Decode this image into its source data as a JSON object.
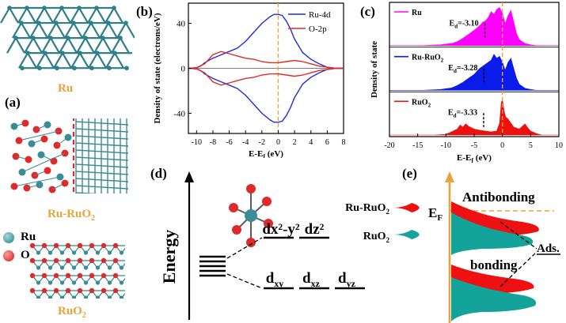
{
  "panel_a": {
    "label": "(a)",
    "ru_label": "Ru",
    "ru_ruo2_label": "Ru-RuO",
    "ru_ruo2_sub": "2",
    "ruo2_label": "RuO",
    "ruo2_sub": "2",
    "legend": [
      {
        "text": "Ru",
        "color": "#3a8c96"
      },
      {
        "text": "O",
        "color": "#e02a2a"
      }
    ]
  },
  "panel_b": {
    "label": "(b)",
    "chart_data": {
      "type": "line",
      "ylabel": "Density of state (electrons/eV)",
      "xlabel": "E-E",
      "xlabel_sub": "f",
      "xlabel_unit": " (eV)",
      "xlim": [
        -11,
        8
      ],
      "ylim": [
        -58,
        58
      ],
      "xticks": [
        "-10",
        "-8",
        "-6",
        "-4",
        "-2",
        "0",
        "2",
        "4",
        "6",
        "8"
      ],
      "yticks": [
        "40",
        "0",
        "-40"
      ],
      "series": [
        {
          "name": "Ru-4d",
          "color": "#1f2fd8",
          "x": [
            -11,
            -10,
            -9.5,
            -9,
            -8,
            -7,
            -6,
            -5,
            -4,
            -3,
            -2,
            -1,
            -0.5,
            0,
            0.5,
            1,
            1.5,
            2,
            3,
            4,
            5,
            6,
            7,
            8
          ],
          "y": [
            0,
            0.5,
            2,
            5,
            9,
            12,
            15,
            18,
            24,
            32,
            40,
            46,
            48,
            48,
            47,
            42,
            35,
            26,
            14,
            8,
            4,
            1,
            0,
            0
          ]
        },
        {
          "name": "O-2p",
          "color": "#e02a2a",
          "x": [
            -11,
            -10,
            -9,
            -8,
            -7,
            -6,
            -5,
            -4,
            -3,
            -2,
            -1,
            0,
            1,
            2,
            3,
            4,
            5,
            6,
            7,
            8
          ],
          "y": [
            0,
            0.5,
            4,
            12,
            15,
            13,
            11,
            9,
            8,
            6,
            5,
            5,
            6,
            7,
            6,
            4,
            2,
            1,
            0,
            0
          ]
        }
      ]
    }
  },
  "panel_c": {
    "label": "(c)",
    "ylabel": "Density of state",
    "xlabel": "E-E",
    "xlabel_sub": "f",
    "xlabel_unit": " (eV)",
    "xticks": [
      "-20",
      "-15",
      "-10",
      "-5",
      "0",
      "5",
      "10"
    ],
    "chart_data": {
      "type": "area",
      "xlim": [
        -20,
        10
      ],
      "series": [
        {
          "name": "Ru",
          "color": "#ff00ff",
          "ed": "-3.10",
          "x": [
            -20,
            -14,
            -11,
            -9,
            -8,
            -7,
            -6,
            -5,
            -4,
            -3.5,
            -3,
            -2.5,
            -2,
            -1.5,
            -1,
            -0.5,
            0,
            0.5,
            1,
            1.5,
            2,
            2.5,
            3,
            4,
            5,
            6,
            10
          ],
          "y": [
            0,
            0,
            0.02,
            0.05,
            0.1,
            0.18,
            0.28,
            0.38,
            0.5,
            0.58,
            0.62,
            0.7,
            0.85,
            0.78,
            0.9,
            0.95,
            0.8,
            0.55,
            0.75,
            0.88,
            0.6,
            0.3,
            0.15,
            0.05,
            0.02,
            0,
            0
          ]
        },
        {
          "name": "Ru-RuO",
          "sub": "2",
          "color": "#0a1bea",
          "ed": "-3.28",
          "x": [
            -20,
            -14,
            -11,
            -9,
            -8,
            -7,
            -6,
            -5,
            -4,
            -3,
            -2,
            -1.5,
            -1,
            -0.5,
            0,
            0.5,
            1,
            1.5,
            2,
            2.5,
            3,
            4,
            5,
            6,
            10
          ],
          "y": [
            0,
            0,
            0.02,
            0.06,
            0.12,
            0.2,
            0.3,
            0.4,
            0.55,
            0.65,
            0.75,
            0.9,
            0.8,
            0.85,
            0.7,
            0.5,
            0.7,
            0.8,
            0.55,
            0.3,
            0.15,
            0.05,
            0.02,
            0,
            0
          ]
        },
        {
          "name": "RuO",
          "sub": "2",
          "color": "#ee1111",
          "ed": "-3.33",
          "x": [
            -20,
            -12,
            -10,
            -9,
            -8,
            -7.5,
            -7,
            -6.5,
            -6,
            -5,
            -4,
            -3,
            -2,
            -1,
            -0.5,
            -0.2,
            0,
            0.3,
            0.6,
            1,
            1.5,
            2,
            3,
            4,
            4.5,
            5,
            6,
            7,
            10
          ],
          "y": [
            0,
            0,
            0.02,
            0.08,
            0.15,
            0.25,
            0.2,
            0.28,
            0.22,
            0.15,
            0.12,
            0.1,
            0.08,
            0.1,
            0.3,
            0.8,
            0.9,
            0.6,
            0.45,
            0.4,
            0.3,
            0.2,
            0.15,
            0.28,
            0.18,
            0.1,
            0.04,
            0,
            0
          ]
        }
      ]
    }
  },
  "panel_d": {
    "label": "(d)",
    "energy": "Energy",
    "eg1": "dx²-y²",
    "eg2": "dz²",
    "t2g": [
      {
        "d": "d",
        "s": "xy"
      },
      {
        "d": "d",
        "s": "xz"
      },
      {
        "d": "d",
        "s": "yz"
      }
    ]
  },
  "panel_e": {
    "label": "(e)",
    "ru_ruo2": "Ru-RuO",
    "ru_ruo2_sub": "2",
    "ruo2": "RuO",
    "ruo2_sub": "2",
    "ef": "E",
    "ef_sub": "F",
    "antibonding": "Antibonding",
    "bonding": "bonding",
    "ads": "Ads."
  }
}
